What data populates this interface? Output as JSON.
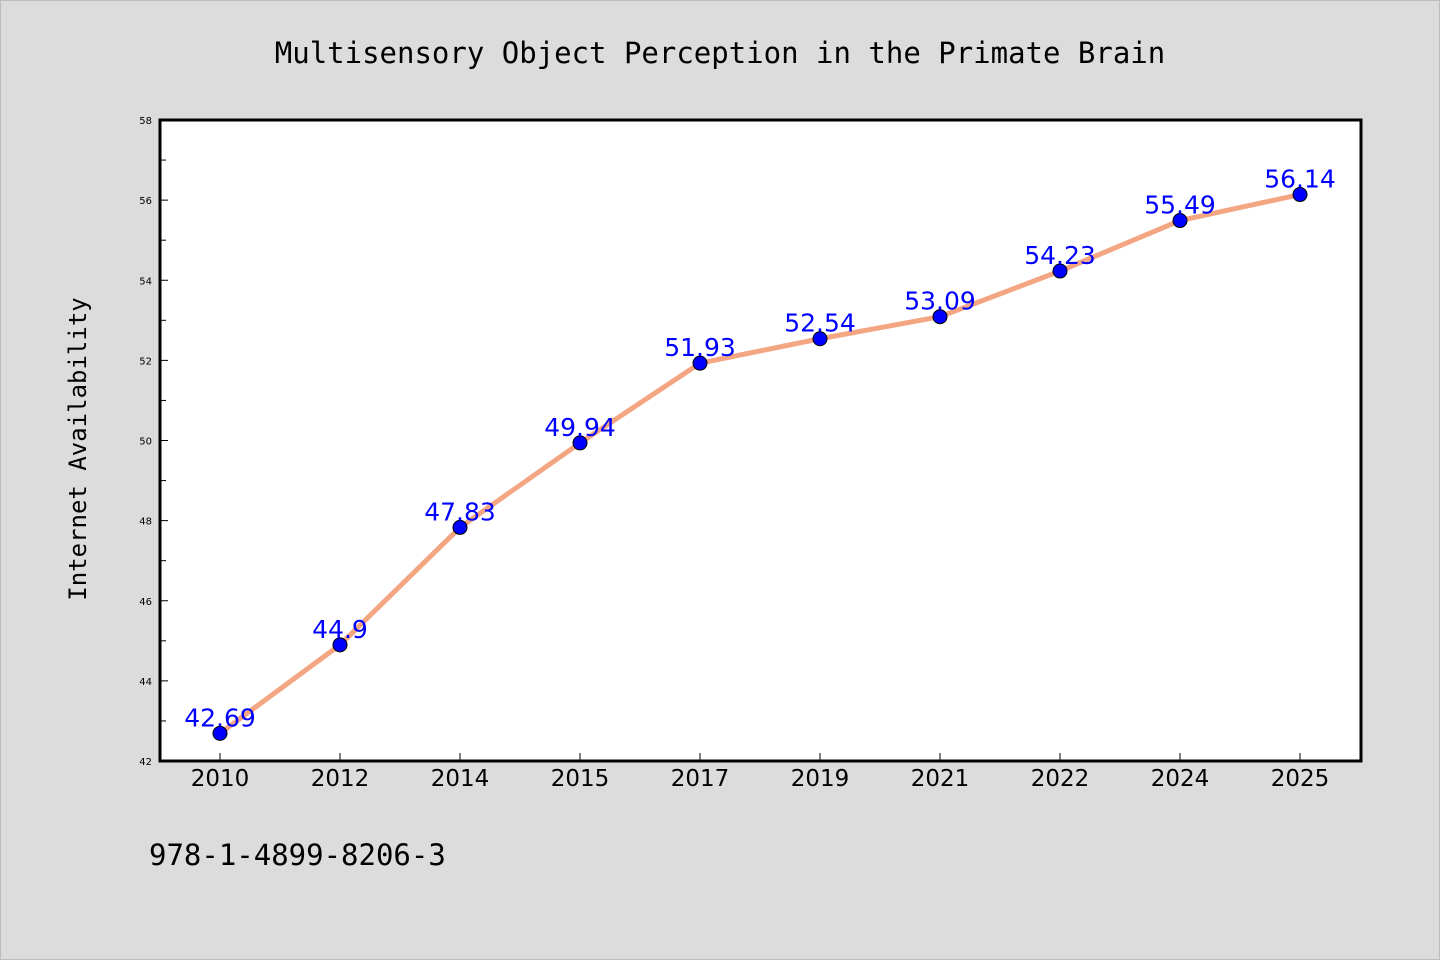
{
  "chart_data": {
    "type": "line",
    "title": "Multisensory Object Perception in the Primate Brain",
    "xlabel": "",
    "ylabel": "Internet Availability",
    "categories": [
      "2010",
      "2012",
      "2014",
      "2015",
      "2017",
      "2019",
      "2021",
      "2022",
      "2024",
      "2025"
    ],
    "series": [
      {
        "values": [
          42.69,
          44.9,
          47.83,
          49.94,
          51.93,
          52.54,
          53.09,
          54.23,
          55.49,
          56.14
        ],
        "labels": [
          "42.69",
          "44.9",
          "47.83",
          "49.94",
          "51.93",
          "52.54",
          "53.09",
          "54.23",
          "55.49",
          "56.14"
        ],
        "line_color": "#f4a582",
        "marker_color": "#0000ff"
      }
    ],
    "ylim": [
      42,
      58
    ],
    "yticks": [
      "42",
      "44",
      "46",
      "48",
      "50",
      "52",
      "54",
      "56",
      "58"
    ],
    "grid": false,
    "legend": "none"
  },
  "footer_text": "978-1-4899-8206-3",
  "colors": {
    "background": "#dcdcdc",
    "plot_area": "#ffffff",
    "data_label": "#0000ff"
  }
}
